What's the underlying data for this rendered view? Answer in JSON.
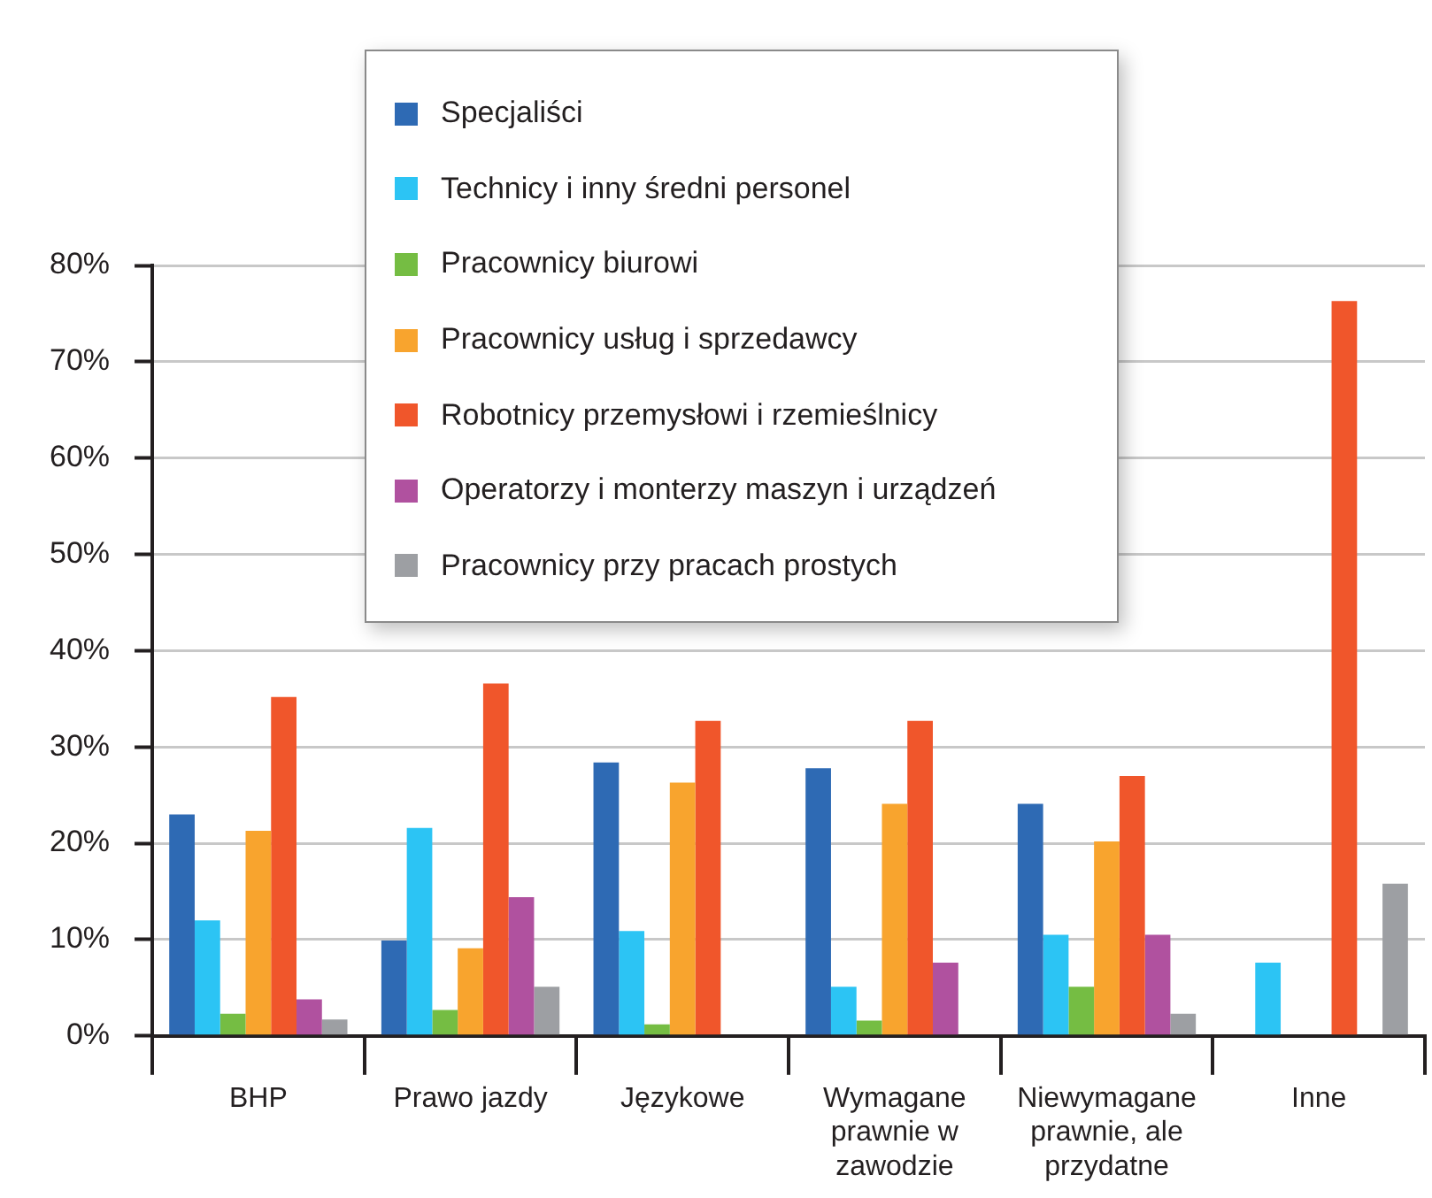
{
  "chart_data": {
    "type": "bar",
    "categories": [
      "BHP",
      "Prawo jazdy",
      "Językowe",
      "Wymagane prawnie w zawodzie",
      "Niewymagane prawnie, ale przydatne",
      "Inne"
    ],
    "series": [
      {
        "name": "Specjaliści",
        "color": "#2e6ab4",
        "values": [
          23.0,
          9.9,
          28.4,
          27.8,
          24.1,
          null
        ]
      },
      {
        "name": "Technicy i inny średni personel",
        "color": "#2cc4f4",
        "values": [
          12.0,
          21.6,
          10.9,
          5.1,
          10.5,
          7.6
        ]
      },
      {
        "name": "Pracownicy biurowi",
        "color": "#75bd43",
        "values": [
          2.3,
          2.7,
          1.2,
          1.6,
          5.1,
          null
        ]
      },
      {
        "name": "Pracownicy usług i sprzedawcy",
        "color": "#f8a42e",
        "values": [
          21.3,
          9.1,
          26.3,
          24.1,
          20.2,
          null
        ]
      },
      {
        "name": "Robotnicy przemysłowi i rzemieślnicy",
        "color": "#f0562b",
        "values": [
          35.2,
          36.6,
          32.7,
          32.7,
          27.0,
          76.3
        ]
      },
      {
        "name": "Operatorzy i monterzy maszyn i urządzeń",
        "color": "#b0519f",
        "values": [
          3.8,
          14.4,
          null,
          7.6,
          10.5,
          null
        ]
      },
      {
        "name": "Pracownicy przy pracach prostych",
        "color": "#9d9fa3",
        "values": [
          1.7,
          5.1,
          null,
          null,
          2.3,
          15.8
        ]
      }
    ],
    "ylim": [
      0,
      80
    ],
    "yticks": [
      {
        "value": 0,
        "label": "0%"
      },
      {
        "value": 10,
        "label": "10%"
      },
      {
        "value": 20,
        "label": "20%"
      },
      {
        "value": 30,
        "label": "30%"
      },
      {
        "value": 40,
        "label": "40%"
      },
      {
        "value": 50,
        "label": "50%"
      },
      {
        "value": 60,
        "label": "60%"
      },
      {
        "value": 70,
        "label": "70%"
      },
      {
        "value": 80,
        "label": "80%"
      }
    ],
    "grid": "y",
    "legend": "top"
  }
}
